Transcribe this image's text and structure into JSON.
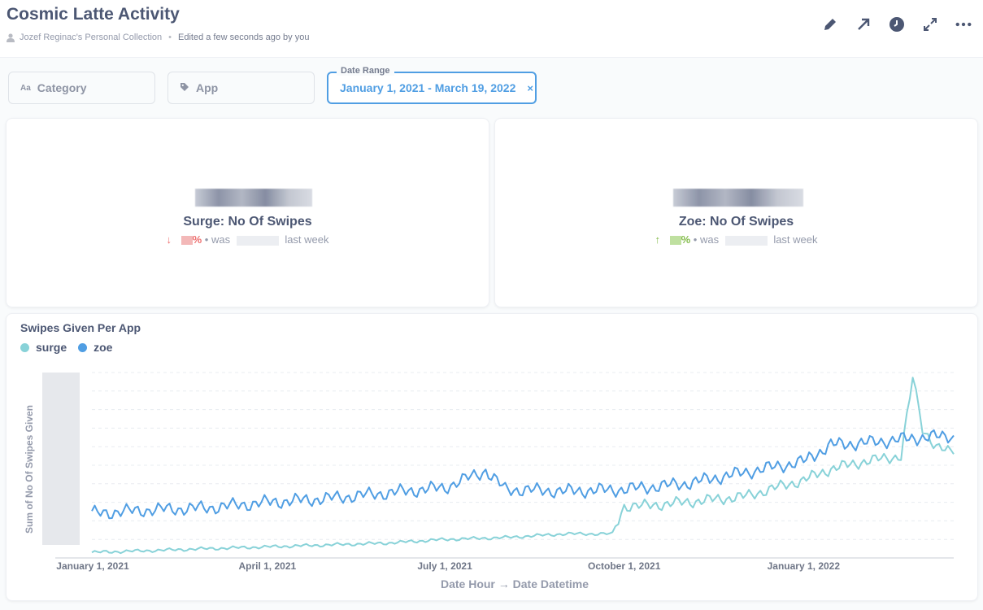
{
  "header": {
    "title": "Cosmic Latte Activity",
    "collection": "Jozef Reginac's Personal Collection",
    "edited": "Edited a few seconds ago by you",
    "actions": [
      "pencil-icon",
      "share-arrow-icon",
      "clock-icon",
      "fullscreen-icon",
      "more-icon"
    ]
  },
  "filters": {
    "category": {
      "label": "Category",
      "icon": "Aa"
    },
    "app": {
      "label": "App",
      "icon": "tag-icon"
    },
    "date_range": {
      "legend": "Date Range",
      "value": "January 1, 2021 - March 19, 2022",
      "clear": "×"
    }
  },
  "cards": {
    "surge": {
      "label": "Surge: No Of Swipes",
      "pct_symbol": "%",
      "was": "• was",
      "last_week": "last week",
      "trend": "down"
    },
    "zoe": {
      "label": "Zoe: No Of Swipes",
      "pct_symbol": "%",
      "was": "• was",
      "last_week": "last week",
      "trend": "up"
    }
  },
  "colors": {
    "surge": "#88d2d8",
    "zoe": "#509ee3",
    "down": "#ed6e6e",
    "up": "#84bb4c"
  },
  "chart_data": {
    "type": "line",
    "title": "Swipes Given Per App",
    "xlabel": "Date Hour → Date Datetime",
    "ylabel": "Sum of No Of Swipes Given",
    "x_ticks": [
      "January 1, 2021",
      "April 1, 2021",
      "July 1, 2021",
      "October 1, 2021",
      "January 1, 2022"
    ],
    "x_range": [
      "2021-01-01",
      "2022-03-19"
    ],
    "y_range": [
      0,
      100
    ],
    "y_tick_labels_visible": false,
    "grid": true,
    "legend_position": "top-left",
    "series": [
      {
        "name": "surge",
        "x": [
          "2021-01-01",
          "2021-02-01",
          "2021-03-01",
          "2021-04-01",
          "2021-05-01",
          "2021-06-01",
          "2021-07-01",
          "2021-08-01",
          "2021-09-01",
          "2021-09-25",
          "2021-10-01",
          "2021-10-10",
          "2021-11-01",
          "2021-12-01",
          "2022-01-01",
          "2022-01-15",
          "2022-02-01",
          "2022-02-20",
          "2022-02-26",
          "2022-03-03",
          "2022-03-10",
          "2022-03-19"
        ],
        "values": [
          3,
          4,
          5,
          6,
          7,
          8,
          10,
          11,
          13,
          13,
          28,
          28,
          30,
          33,
          42,
          48,
          52,
          55,
          97,
          70,
          60,
          56
        ]
      },
      {
        "name": "zoe",
        "x": [
          "2021-01-01",
          "2021-02-01",
          "2021-03-01",
          "2021-04-01",
          "2021-05-01",
          "2021-06-01",
          "2021-07-01",
          "2021-07-22",
          "2021-08-01",
          "2021-09-01",
          "2021-10-01",
          "2021-11-01",
          "2021-12-01",
          "2022-01-01",
          "2022-01-15",
          "2022-02-01",
          "2022-02-20",
          "2022-03-03",
          "2022-03-19"
        ],
        "values": [
          24,
          26,
          27,
          30,
          32,
          35,
          38,
          47,
          37,
          36,
          37,
          40,
          46,
          52,
          61,
          62,
          64,
          65,
          66
        ]
      }
    ]
  }
}
